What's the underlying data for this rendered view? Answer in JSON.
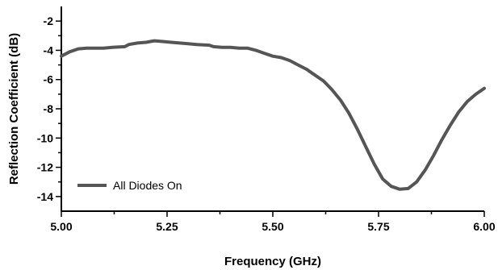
{
  "chart_data": {
    "type": "line",
    "title": "",
    "xlabel": "Frequency (GHz)",
    "ylabel": "Reflection Coefficient (dB)",
    "xlim": [
      5.0,
      6.0
    ],
    "ylim": [
      -15,
      -1
    ],
    "x_ticks": [
      5.0,
      5.25,
      5.5,
      5.75,
      6.0
    ],
    "x_tick_labels": [
      "5.00",
      "5.25",
      "5.50",
      "5.75",
      "6.00"
    ],
    "y_ticks": [
      -2,
      -4,
      -6,
      -8,
      -10,
      -12,
      -14
    ],
    "y_tick_labels": [
      "-2",
      "-4",
      "-6",
      "-8",
      "-10",
      "-12",
      "-14"
    ],
    "grid": false,
    "legend_position": "bottom-left",
    "series": [
      {
        "name": "All Diodes On",
        "color": "#555555",
        "x": [
          5.0,
          5.02,
          5.04,
          5.06,
          5.08,
          5.1,
          5.12,
          5.15,
          5.16,
          5.18,
          5.2,
          5.22,
          5.24,
          5.26,
          5.28,
          5.3,
          5.32,
          5.35,
          5.36,
          5.38,
          5.4,
          5.42,
          5.44,
          5.46,
          5.48,
          5.5,
          5.52,
          5.54,
          5.56,
          5.58,
          5.6,
          5.62,
          5.64,
          5.66,
          5.68,
          5.7,
          5.72,
          5.74,
          5.76,
          5.78,
          5.8,
          5.82,
          5.84,
          5.86,
          5.88,
          5.9,
          5.92,
          5.94,
          5.96,
          5.98,
          6.0
        ],
        "y": [
          -4.4,
          -4.1,
          -3.9,
          -3.85,
          -3.85,
          -3.85,
          -3.8,
          -3.75,
          -3.6,
          -3.5,
          -3.45,
          -3.35,
          -3.4,
          -3.45,
          -3.5,
          -3.55,
          -3.6,
          -3.65,
          -3.75,
          -3.8,
          -3.8,
          -3.85,
          -3.85,
          -4.0,
          -4.2,
          -4.4,
          -4.5,
          -4.7,
          -5.0,
          -5.3,
          -5.7,
          -6.1,
          -6.7,
          -7.4,
          -8.3,
          -9.4,
          -10.6,
          -11.8,
          -12.8,
          -13.3,
          -13.5,
          -13.45,
          -13.0,
          -12.2,
          -11.2,
          -10.1,
          -9.1,
          -8.2,
          -7.5,
          -7.0,
          -6.6
        ]
      }
    ]
  }
}
